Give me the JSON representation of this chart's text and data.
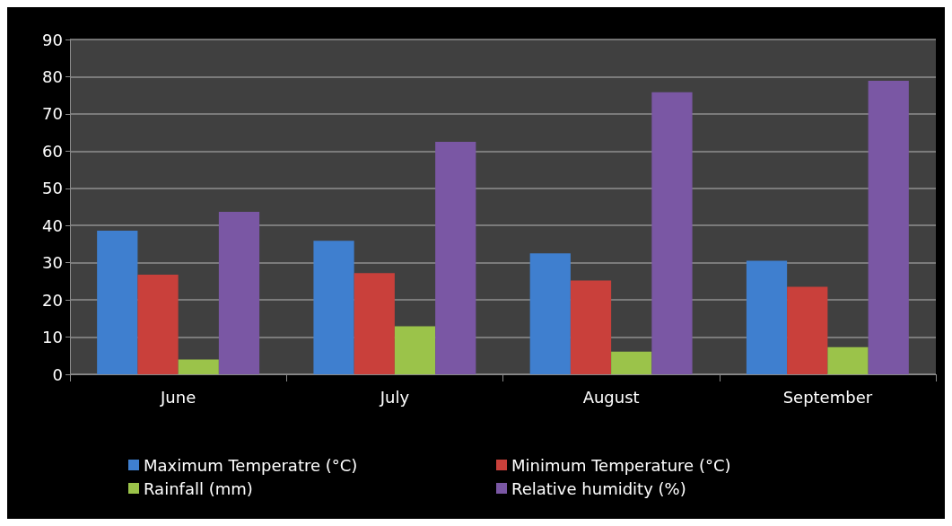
{
  "chart_data": {
    "type": "bar",
    "categories": [
      "June",
      "July",
      "August",
      "September"
    ],
    "series": [
      {
        "name": "Maximum Temperatre (°C)",
        "color": "#3f7fcf",
        "values": [
          38.6,
          35.9,
          32.5,
          30.5
        ]
      },
      {
        "name": "Minimum Temperature (°C)",
        "color": "#c9403b",
        "values": [
          26.8,
          27.2,
          25.2,
          23.5
        ]
      },
      {
        "name": "Rainfall (mm)",
        "color": "#9bc34a",
        "values": [
          4,
          12.9,
          6.1,
          7.3
        ]
      },
      {
        "name": "Relative humidity (%)",
        "color": "#7a57a4",
        "values": [
          43.7,
          62.5,
          75.8,
          78.9
        ]
      }
    ],
    "ylim": [
      0,
      90
    ],
    "yticks": [
      0,
      10,
      20,
      30,
      40,
      50,
      60,
      70,
      80,
      90
    ],
    "grid": "y",
    "legend": "bottom"
  }
}
